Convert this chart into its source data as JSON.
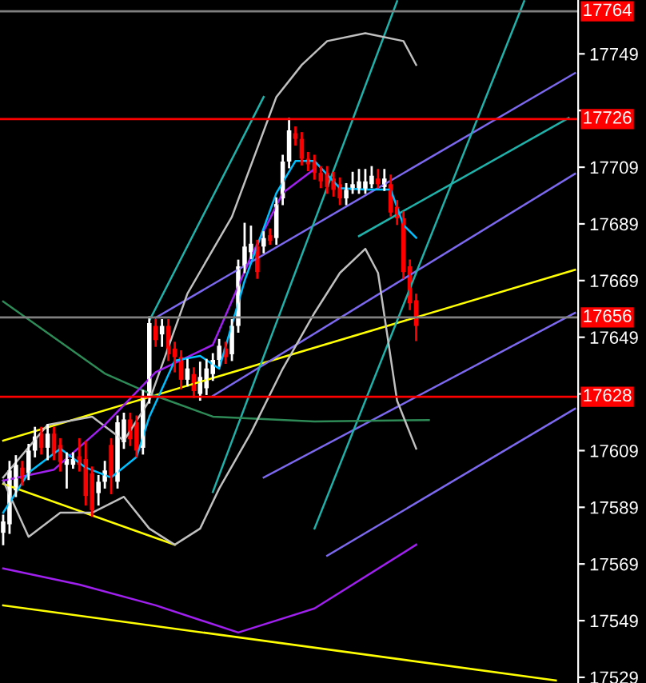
{
  "chart_data": {
    "type": "candlestick",
    "categories": [
      null,
      null,
      null,
      null,
      null,
      null,
      null,
      null,
      null,
      null,
      null,
      null,
      null,
      null,
      null,
      null,
      null,
      null,
      null,
      null,
      null,
      null,
      null,
      null,
      null,
      null,
      null,
      null,
      null,
      null,
      null,
      null,
      null,
      null,
      null,
      null,
      null,
      null,
      null,
      null,
      null,
      null,
      null,
      null,
      null,
      null,
      null,
      null,
      null,
      null,
      null,
      null,
      null,
      null,
      null,
      null,
      null,
      null,
      null,
      null,
      null,
      null,
      null,
      null,
      null,
      null,
      null,
      null,
      null,
      null,
      null,
      null,
      null,
      null,
      null,
      null,
      null,
      null,
      null,
      null,
      null,
      null,
      null,
      null,
      null,
      null,
      null,
      null,
      null,
      null,
      null
    ],
    "ohlc": [
      [
        17580,
        17586,
        17576,
        17584
      ],
      [
        17583,
        17605,
        17580,
        17602
      ],
      [
        17595,
        17607,
        17593,
        17604
      ],
      [
        17603,
        17605,
        17597,
        17599
      ],
      [
        17601,
        17611,
        17599,
        17609
      ],
      [
        17609,
        17617,
        17607,
        17614
      ],
      [
        17615,
        17617,
        17608,
        17610
      ],
      [
        17610,
        17618,
        17606,
        17615
      ],
      [
        17615,
        17617,
        17606,
        17608
      ],
      [
        17611,
        17613,
        17602,
        17605
      ],
      [
        17604,
        17608,
        17596,
        17606
      ],
      [
        17604,
        17608,
        17603,
        17606
      ],
      [
        17607,
        17613,
        17602,
        17604
      ],
      [
        17606,
        17612,
        17590,
        17593
      ],
      [
        17601,
        17603,
        17586,
        17588
      ],
      [
        17594,
        17600,
        17590,
        17598
      ],
      [
        17598,
        17605,
        17596,
        17602
      ],
      [
        17611,
        17613,
        17594,
        17600
      ],
      [
        17598,
        17621,
        17596,
        17619
      ],
      [
        17612,
        17622,
        17610,
        17620
      ],
      [
        17620,
        17622,
        17611,
        17613
      ],
      [
        17619,
        17621,
        17607,
        17609
      ],
      [
        17610,
        17630,
        17608,
        17628
      ],
      [
        17628,
        17656,
        17626,
        17654
      ],
      [
        17653,
        17655,
        17646,
        17648
      ],
      [
        17650,
        17655,
        17646,
        17653
      ],
      [
        17653,
        17655,
        17641,
        17643
      ],
      [
        17645,
        17647,
        17637,
        17642
      ],
      [
        17642,
        17644,
        17631,
        17634
      ],
      [
        17634,
        17641,
        17632,
        17638
      ],
      [
        17636,
        17638,
        17628,
        17630
      ],
      [
        17629,
        17640,
        17627,
        17635
      ],
      [
        17631,
        17641,
        17629,
        17638
      ],
      [
        17636,
        17643,
        17634,
        17641
      ],
      [
        17641,
        17648,
        17639,
        17646
      ],
      [
        17645,
        17647,
        17640,
        17642
      ],
      [
        17643,
        17655,
        17641,
        17653
      ],
      [
        17653,
        17676,
        17651,
        17674
      ],
      [
        17674,
        17689,
        17672,
        17681
      ],
      [
        17679,
        17688,
        17677,
        17682
      ],
      [
        17681,
        17683,
        17670,
        17672
      ],
      [
        17681,
        17686,
        17679,
        17684
      ],
      [
        17685,
        17687,
        17682,
        17683
      ],
      [
        17684,
        17698,
        17682,
        17696
      ],
      [
        17698,
        17713,
        17696,
        17711
      ],
      [
        17711,
        17726,
        17709,
        17722
      ],
      [
        17721,
        17723,
        17717,
        17719
      ],
      [
        17719,
        17721,
        17710,
        17712
      ],
      [
        17712,
        17714,
        17708,
        17710
      ],
      [
        17711,
        17713,
        17705,
        17707
      ],
      [
        17707,
        17709,
        17702,
        17704
      ],
      [
        17707,
        17709,
        17700,
        17702
      ],
      [
        17705,
        17707,
        17699,
        17701
      ],
      [
        17703,
        17705,
        17696,
        17698
      ],
      [
        17698,
        17703,
        17696,
        17701
      ],
      [
        17701,
        17707,
        17700,
        17703
      ],
      [
        17701,
        17708,
        17700,
        17704
      ],
      [
        17701,
        17708,
        17700,
        17704
      ],
      [
        17703,
        17709,
        17702,
        17706
      ],
      [
        17705,
        17708,
        17702,
        17703
      ],
      [
        17702,
        17708,
        17701,
        17705
      ],
      [
        17703,
        17706,
        17692,
        17693
      ],
      [
        17695,
        17697,
        17689,
        17691
      ],
      [
        17691,
        17693,
        17670,
        17672
      ],
      [
        17674,
        17676,
        17659,
        17661
      ],
      [
        17662,
        17664,
        17648,
        17653
      ],
      null,
      null,
      null,
      null,
      null,
      null,
      null,
      null,
      null,
      null,
      null,
      null,
      null,
      null,
      null,
      null,
      null,
      null,
      null,
      null,
      null,
      null,
      null,
      null,
      null
    ],
    "colors": [
      "#ffffff",
      "#ffffff",
      "#ffffff",
      "#ff0000",
      "#ffffff",
      "#ffffff",
      "#ff0000",
      "#ffffff",
      "#ff0000",
      "#ff0000",
      "#ffffff",
      "#ffffff",
      "#ff0000",
      "#ff0000",
      "#ff0000",
      "#ffffff",
      "#ffffff",
      "#ff0000",
      "#ffffff",
      "#ffffff",
      "#ff0000",
      "#ff0000",
      "#ffffff",
      "#ffffff",
      "#ff0000",
      "#ffffff",
      "#ff0000",
      "#ff0000",
      "#ff0000",
      "#ffffff",
      "#ff0000",
      "#ffffff",
      "#ffffff",
      "#ffffff",
      "#ffffff",
      "#ff0000",
      "#ffffff",
      "#ffffff",
      "#ffffff",
      "#ffffff",
      "#ff0000",
      "#ffffff",
      "#ff0000",
      "#ffffff",
      "#ffffff",
      "#ffffff",
      "#ff0000",
      "#ff0000",
      "#ff0000",
      "#ff0000",
      "#ff0000",
      "#ff0000",
      "#ff0000",
      "#ff0000",
      "#ffffff",
      "#ffffff",
      "#ffffff",
      "#ffffff",
      "#ffffff",
      "#ff0000",
      "#ffffff",
      "#ff0000",
      "#ff0000",
      "#ff0000",
      "#ff0000",
      "#ff0000",
      null,
      null,
      null,
      null,
      null,
      null,
      null,
      null,
      null,
      null,
      null,
      null,
      null,
      null,
      null,
      null,
      null,
      null,
      null,
      null,
      null,
      null,
      null,
      null,
      null
    ],
    "series": [
      {
        "type": "line",
        "color": "#ffff00",
        "values": [
          17612.5,
          null,
          null,
          null,
          null,
          null,
          null,
          null,
          null,
          null,
          null,
          null,
          null,
          null,
          null,
          null,
          null,
          null,
          null,
          null,
          null,
          null,
          null,
          null,
          null,
          null,
          null,
          null,
          null,
          null,
          null,
          null,
          null,
          null,
          null,
          null,
          null,
          null,
          null,
          null,
          null,
          null,
          null,
          null,
          null,
          null,
          null,
          null,
          null,
          null,
          null,
          null,
          null,
          null,
          null,
          null,
          null,
          null,
          null,
          null,
          null,
          null,
          null,
          null,
          null,
          null,
          null,
          null,
          null,
          null,
          null,
          null,
          null,
          null,
          null,
          null,
          null,
          null,
          null,
          null,
          null,
          null,
          null,
          null,
          null,
          null,
          null,
          null,
          null,
          null,
          17672.8
        ]
      },
      {
        "type": "line",
        "color": "#ffff00",
        "values": [
          17597.3,
          null,
          null,
          null,
          null,
          null,
          null,
          null,
          null,
          null,
          null,
          null,
          null,
          null,
          null,
          null,
          null,
          null,
          null,
          null,
          null,
          null,
          null,
          null,
          null,
          null,
          null,
          17575.8,
          null,
          null,
          null,
          null,
          null,
          null,
          null,
          null,
          null,
          null,
          null,
          null,
          null,
          null,
          null,
          null,
          null,
          null,
          null,
          null,
          null,
          null,
          null,
          null,
          null,
          null,
          null,
          null,
          null,
          null,
          null,
          null,
          null,
          null,
          null,
          null,
          null,
          null,
          null,
          null,
          null,
          null,
          null,
          null,
          null,
          null,
          null,
          null,
          null,
          null,
          null,
          null,
          null,
          null,
          null,
          null,
          null,
          null,
          null,
          null,
          null,
          null,
          null
        ]
      },
      {
        "type": "line",
        "color": "#ffff00",
        "values": [
          17554.4,
          null,
          null,
          null,
          null,
          null,
          null,
          null,
          null,
          null,
          null,
          null,
          null,
          null,
          null,
          null,
          null,
          null,
          null,
          null,
          null,
          null,
          null,
          null,
          null,
          null,
          null,
          null,
          null,
          null,
          null,
          null,
          null,
          null,
          null,
          null,
          null,
          null,
          null,
          null,
          null,
          null,
          null,
          null,
          null,
          null,
          null,
          null,
          null,
          null,
          null,
          null,
          null,
          null,
          null,
          null,
          null,
          null,
          null,
          null,
          null,
          null,
          null,
          null,
          null,
          null,
          null,
          null,
          null,
          null,
          null,
          null,
          null,
          null,
          null,
          null,
          null,
          null,
          null,
          null,
          null,
          null,
          null,
          null,
          null,
          null,
          null,
          17527.9,
          null,
          null,
          null
        ]
      },
      {
        "type": "line",
        "color": "#7b68ee",
        "values": [
          null,
          null,
          null,
          null,
          null,
          null,
          null,
          null,
          null,
          null,
          null,
          null,
          null,
          null,
          null,
          null,
          null,
          null,
          null,
          null,
          null,
          null,
          null,
          null,
          17655.9,
          null,
          null,
          null,
          null,
          null,
          null,
          null,
          null,
          null,
          null,
          null,
          null,
          null,
          null,
          null,
          null,
          null,
          null,
          null,
          null,
          null,
          null,
          null,
          null,
          null,
          null,
          null,
          null,
          null,
          null,
          null,
          null,
          null,
          null,
          null,
          null,
          null,
          null,
          null,
          null,
          null,
          null,
          null,
          null,
          null,
          null,
          null,
          null,
          null,
          null,
          null,
          null,
          null,
          null,
          null,
          null,
          null,
          null,
          null,
          null,
          null,
          null,
          null,
          null,
          null,
          17742.2
        ]
      },
      {
        "type": "line",
        "color": "#7b68ee",
        "values": [
          null,
          null,
          null,
          null,
          null,
          null,
          null,
          null,
          null,
          null,
          null,
          null,
          null,
          null,
          null,
          null,
          null,
          null,
          null,
          null,
          null,
          null,
          null,
          null,
          null,
          null,
          null,
          null,
          null,
          null,
          null,
          null,
          null,
          17628.3,
          null,
          null,
          null,
          null,
          null,
          null,
          null,
          null,
          null,
          null,
          null,
          null,
          null,
          null,
          null,
          null,
          null,
          null,
          null,
          null,
          null,
          null,
          null,
          null,
          null,
          null,
          null,
          null,
          null,
          null,
          null,
          null,
          null,
          null,
          null,
          null,
          null,
          null,
          null,
          null,
          null,
          null,
          null,
          null,
          null,
          null,
          null,
          null,
          null,
          null,
          null,
          null,
          null,
          null,
          null,
          null,
          17706.7
        ]
      },
      {
        "type": "line",
        "color": "#7b68ee",
        "values": [
          null,
          null,
          null,
          null,
          null,
          null,
          null,
          null,
          null,
          null,
          null,
          null,
          null,
          null,
          null,
          null,
          null,
          null,
          null,
          null,
          null,
          null,
          null,
          null,
          null,
          null,
          null,
          null,
          null,
          null,
          null,
          null,
          null,
          null,
          null,
          null,
          null,
          null,
          null,
          null,
          null,
          17599.5,
          null,
          null,
          null,
          null,
          null,
          null,
          null,
          null,
          null,
          null,
          null,
          null,
          null,
          null,
          null,
          null,
          null,
          null,
          null,
          null,
          null,
          null,
          null,
          null,
          null,
          null,
          null,
          null,
          null,
          null,
          null,
          null,
          null,
          null,
          null,
          null,
          null,
          null,
          null,
          null,
          null,
          null,
          null,
          null,
          null,
          null,
          null,
          null,
          17657.6
        ]
      },
      {
        "type": "line",
        "color": "#7b68ee",
        "values": [
          null,
          null,
          null,
          null,
          null,
          null,
          null,
          null,
          null,
          null,
          null,
          null,
          null,
          null,
          null,
          null,
          null,
          null,
          null,
          null,
          null,
          null,
          null,
          null,
          null,
          null,
          null,
          null,
          null,
          null,
          null,
          null,
          null,
          null,
          null,
          null,
          null,
          null,
          null,
          null,
          null,
          null,
          null,
          null,
          null,
          null,
          null,
          null,
          null,
          null,
          null,
          17571.9,
          null,
          null,
          null,
          null,
          null,
          null,
          null,
          null,
          null,
          null,
          null,
          null,
          null,
          null,
          null,
          null,
          null,
          null,
          null,
          null,
          null,
          null,
          null,
          null,
          null,
          null,
          null,
          null,
          null,
          null,
          null,
          null,
          null,
          null,
          null,
          null,
          null,
          null,
          17623.8
        ]
      },
      {
        "type": "line",
        "color": "#20b2aa",
        "values": [
          null,
          null,
          null,
          null,
          null,
          null,
          null,
          null,
          null,
          null,
          null,
          null,
          null,
          null,
          null,
          null,
          null,
          null,
          null,
          null,
          null,
          null,
          null,
          17654.8,
          null,
          null,
          null,
          null,
          null,
          null,
          null,
          null,
          null,
          null,
          null,
          null,
          null,
          null,
          null,
          null,
          null,
          17733.8,
          null,
          null,
          null,
          null,
          null,
          null,
          null,
          null,
          null,
          null,
          null,
          null,
          null,
          null,
          null,
          null,
          null,
          null,
          null,
          null,
          null,
          null,
          null,
          null,
          null,
          null,
          null,
          null,
          null,
          null,
          null,
          null,
          null,
          null,
          null,
          null,
          null,
          null,
          null,
          null,
          null,
          null,
          null,
          null,
          null,
          null,
          null,
          null,
          null
        ]
      },
      {
        "type": "line",
        "color": "#20b2aa",
        "values": [
          null,
          null,
          null,
          null,
          null,
          null,
          null,
          null,
          null,
          null,
          null,
          null,
          null,
          null,
          null,
          null,
          null,
          null,
          null,
          null,
          null,
          null,
          null,
          null,
          null,
          null,
          null,
          null,
          null,
          null,
          null,
          null,
          null,
          17594.4,
          null,
          null,
          null,
          null,
          null,
          null,
          null,
          null,
          null,
          null,
          null,
          null,
          null,
          null,
          null,
          null,
          null,
          null,
          null,
          null,
          null,
          null,
          null,
          null,
          null,
          null,
          null,
          null,
          17767.6,
          null,
          null,
          null,
          null,
          null,
          null,
          null,
          null,
          null,
          null,
          null,
          null,
          null,
          null,
          null,
          null,
          null,
          null,
          null,
          null,
          null,
          null,
          null,
          null,
          null,
          null,
          null,
          null
        ]
      },
      {
        "type": "line",
        "color": "#20b2aa",
        "values": [
          null,
          null,
          null,
          null,
          null,
          null,
          null,
          null,
          null,
          null,
          null,
          null,
          null,
          null,
          null,
          null,
          null,
          null,
          null,
          null,
          null,
          null,
          null,
          null,
          null,
          null,
          null,
          null,
          null,
          null,
          null,
          null,
          null,
          null,
          null,
          null,
          null,
          null,
          null,
          null,
          null,
          null,
          null,
          null,
          null,
          null,
          null,
          null,
          null,
          17581.5,
          null,
          null,
          null,
          null,
          null,
          null,
          null,
          null,
          null,
          null,
          null,
          null,
          null,
          null,
          null,
          null,
          null,
          null,
          null,
          null,
          null,
          null,
          null,
          null,
          null,
          null,
          null,
          null,
          null,
          null,
          null,
          null,
          17767.6,
          null,
          null,
          null,
          null,
          null,
          null,
          null,
          null
        ]
      },
      {
        "type": "line",
        "color": "#20b2aa",
        "values": [
          null,
          null,
          null,
          null,
          null,
          null,
          null,
          null,
          null,
          null,
          null,
          null,
          null,
          null,
          null,
          null,
          null,
          null,
          null,
          null,
          null,
          null,
          null,
          null,
          null,
          null,
          null,
          null,
          null,
          null,
          null,
          null,
          null,
          null,
          null,
          null,
          null,
          null,
          null,
          null,
          null,
          null,
          null,
          null,
          null,
          null,
          null,
          null,
          null,
          null,
          null,
          null,
          null,
          null,
          null,
          null,
          17684.7,
          null,
          null,
          null,
          null,
          null,
          null,
          null,
          null,
          null,
          null,
          null,
          null,
          null,
          null,
          null,
          null,
          null,
          null,
          null,
          null,
          null,
          null,
          null,
          null,
          null,
          null,
          null,
          null,
          null,
          null,
          null,
          null,
          17726.4,
          null
        ]
      },
      {
        "type": "line",
        "color": "#2e8b57",
        "values": [
          17661.6,
          null,
          null,
          null,
          null,
          null,
          null,
          null,
          null,
          null,
          null,
          null,
          null,
          null,
          null,
          null,
          17636.2,
          null,
          null,
          null,
          null,
          null,
          null,
          null,
          17628.3,
          null,
          null,
          null,
          null,
          null,
          null,
          null,
          null,
          17621.0,
          null,
          null,
          null,
          null,
          null,
          null,
          null,
          null,
          null,
          null,
          null,
          null,
          null,
          null,
          null,
          17619.3,
          null,
          null,
          null,
          null,
          null,
          null,
          null,
          null,
          null,
          null,
          null,
          null,
          null,
          null,
          null,
          null,
          null,
          17619.8,
          null,
          null,
          null,
          null,
          null,
          null,
          null,
          null,
          null,
          null,
          null,
          null,
          null,
          null,
          null,
          null,
          null,
          null,
          null,
          null,
          null,
          null,
          null
        ]
      },
      {
        "type": "line",
        "color": "#c0c0c0",
        "values": [
          17599.5,
          null,
          null,
          null,
          null,
          null,
          null,
          17618.1,
          null,
          null,
          null,
          null,
          null,
          null,
          17621.0,
          null,
          null,
          null,
          null,
          17612.5,
          null,
          null,
          null,
          17626.6,
          null,
          null,
          null,
          null,
          null,
          17664.4,
          null,
          null,
          null,
          null,
          null,
          null,
          17691.5,
          null,
          null,
          null,
          null,
          null,
          null,
          17733.8,
          null,
          null,
          null,
          17745.1,
          null,
          null,
          null,
          17753.5,
          null,
          null,
          null,
          null,
          null,
          17756.3,
          null,
          null,
          null,
          null,
          null,
          17753.5,
          null,
          17745.1,
          null,
          null,
          null,
          null,
          null,
          null,
          null,
          null,
          null,
          null,
          null,
          null,
          null,
          null,
          null,
          null,
          null,
          null,
          null,
          null,
          null,
          null,
          null,
          null,
          null
        ]
      },
      {
        "type": "line",
        "color": "#c0c0c0",
        "values": [
          17598.4,
          null,
          null,
          null,
          17578.6,
          null,
          null,
          null,
          null,
          17587.1,
          null,
          null,
          null,
          null,
          17587.1,
          null,
          null,
          null,
          null,
          17592.7,
          null,
          null,
          null,
          17581.5,
          null,
          null,
          null,
          17575.8,
          null,
          null,
          null,
          17581.5,
          null,
          null,
          17595.6,
          null,
          null,
          null,
          null,
          17615.3,
          null,
          null,
          null,
          null,
          17637.9,
          null,
          null,
          null,
          null,
          17657.6,
          null,
          null,
          null,
          17671.7,
          null,
          null,
          null,
          17680.2,
          null,
          17671.7,
          null,
          null,
          17626.6,
          null,
          null,
          17609.7,
          null,
          null,
          null,
          null,
          null,
          null,
          null,
          null,
          null,
          null,
          null,
          null,
          null,
          null,
          null,
          null,
          null,
          null,
          null,
          null,
          null,
          null,
          null,
          null,
          null
        ]
      },
      {
        "type": "line",
        "color": "#a020f0",
        "values": [
          17598.4,
          null,
          null,
          null,
          null,
          null,
          null,
          null,
          17602.3,
          null,
          null,
          null,
          null,
          null,
          null,
          null,
          17618.1,
          null,
          null,
          null,
          null,
          null,
          null,
          null,
          17636.7,
          null,
          null,
          null,
          null,
          null,
          null,
          null,
          null,
          17646.3,
          null,
          null,
          null,
          null,
          null,
          17677.4,
          null,
          null,
          null,
          null,
          17699.9,
          null,
          null,
          null,
          null,
          17708.4,
          null,
          null,
          null,
          null,
          null,
          null,
          null,
          null,
          null,
          null,
          null,
          null,
          null,
          null,
          null,
          null,
          null,
          null,
          null,
          null,
          null,
          null,
          null,
          null,
          null,
          null,
          null,
          null,
          null,
          null,
          null,
          null,
          null,
          null,
          null,
          null,
          null,
          null,
          null,
          null,
          null
        ]
      },
      {
        "type": "line",
        "color": "#a020f0",
        "values": [
          17567.4,
          null,
          null,
          null,
          null,
          null,
          null,
          null,
          null,
          null,
          null,
          null,
          17561.7,
          null,
          null,
          null,
          null,
          null,
          null,
          null,
          null,
          null,
          null,
          null,
          17554.4,
          null,
          null,
          null,
          null,
          null,
          null,
          null,
          null,
          null,
          null,
          null,
          null,
          17544.8,
          null,
          null,
          null,
          null,
          null,
          null,
          null,
          null,
          null,
          null,
          null,
          17553.3,
          null,
          null,
          null,
          null,
          null,
          null,
          null,
          null,
          null,
          null,
          null,
          null,
          null,
          null,
          null,
          17575.8,
          null,
          null,
          null,
          null,
          null,
          null,
          null,
          null,
          null,
          null,
          null,
          null,
          null,
          null,
          null,
          null,
          null,
          null,
          null,
          null,
          null,
          null,
          null,
          null,
          null
        ]
      },
      {
        "type": "line",
        "color": "#00bfff",
        "values": [
          17587.1,
          null,
          null,
          null,
          17601.2,
          null,
          null,
          null,
          null,
          17609.7,
          null,
          null,
          null,
          17603.0,
          null,
          null,
          null,
          17599.5,
          null,
          null,
          null,
          17606.8,
          null,
          17620.9,
          null,
          null,
          null,
          17640.7,
          null,
          null,
          null,
          17642.4,
          null,
          null,
          17637.9,
          null,
          null,
          null,
          17668.9,
          null,
          null,
          null,
          null,
          17699.9,
          null,
          null,
          17711.2,
          null,
          null,
          17711.2,
          null,
          null,
          null,
          17701.6,
          null,
          null,
          null,
          17701.1,
          null,
          null,
          null,
          17701.1,
          null,
          17688.6,
          null,
          17684.1,
          null,
          null,
          null,
          null,
          null,
          null,
          null,
          null,
          null,
          null,
          null,
          null,
          null,
          null,
          null,
          null,
          null,
          null,
          null,
          null,
          null,
          null,
          null,
          null,
          null
        ]
      }
    ],
    "ref_lines": [
      {
        "axis": "y",
        "value": 17764,
        "label": "17764",
        "color": "#808080"
      },
      {
        "axis": "y",
        "value": 17726,
        "label": "17726",
        "color": "#ff0000"
      },
      {
        "axis": "y",
        "value": 17656,
        "label": "17656",
        "color": "#808080"
      },
      {
        "axis": "y",
        "value": 17628,
        "label": "17628",
        "color": "#ff0000"
      }
    ],
    "ylim": [
      17527,
      17768
    ],
    "yticks": [
      17529,
      17549,
      17569,
      17589,
      17609,
      {
        "value": 17629,
        "label": null
      },
      17649,
      17669,
      17689,
      17709,
      {
        "value": 17729,
        "label": null
      },
      17749
    ],
    "tick_labels": "y"
  }
}
